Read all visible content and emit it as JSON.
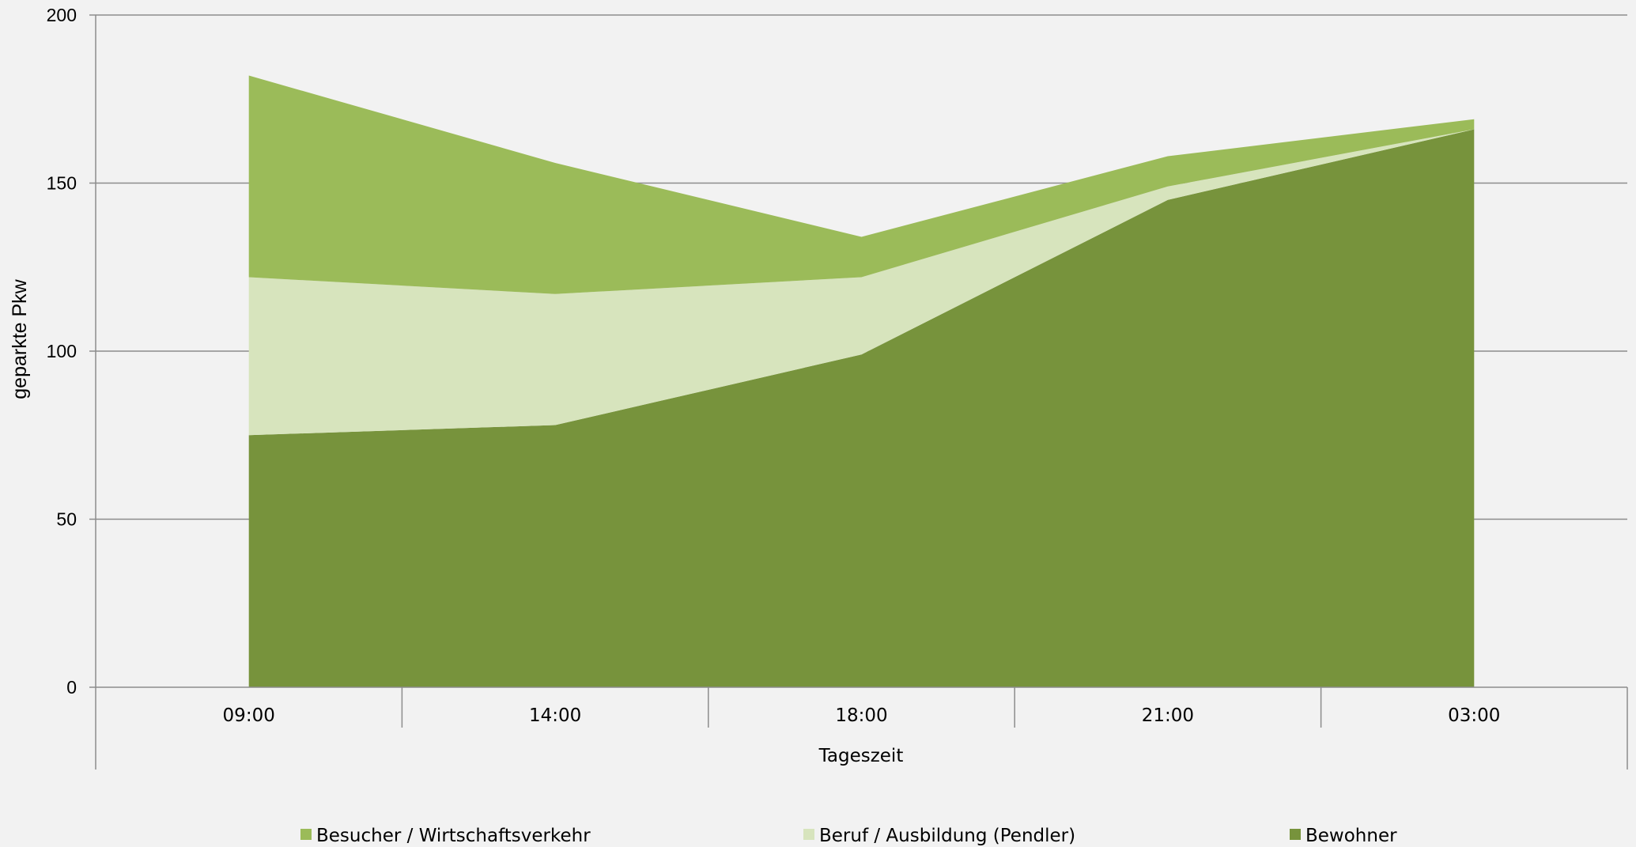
{
  "chart_data": {
    "type": "area",
    "stacked": true,
    "xlabel": "Tageszeit",
    "ylabel": "geparkte Pkw",
    "ylim": [
      0,
      200
    ],
    "yticks": [
      0,
      50,
      100,
      150,
      200
    ],
    "categories": [
      "09:00",
      "14:00",
      "18:00",
      "21:00",
      "03:00"
    ],
    "grid": true,
    "legend_position": "bottom",
    "series": [
      {
        "name": "Bewohner",
        "values": [
          75,
          78,
          99,
          145,
          166
        ],
        "color": "#77933c"
      },
      {
        "name": "Beruf / Ausbildung (Pendler)",
        "values": [
          47,
          39,
          23,
          4,
          0
        ],
        "color": "#d7e4bd"
      },
      {
        "name": "Besucher / Wirtschaftsverkehr",
        "values": [
          60,
          39,
          12,
          9,
          3
        ],
        "color": "#9bbb59"
      }
    ],
    "legend_order": [
      "Besucher / Wirtschaftsverkehr",
      "Beruf / Ausbildung (Pendler)",
      "Bewohner"
    ]
  }
}
